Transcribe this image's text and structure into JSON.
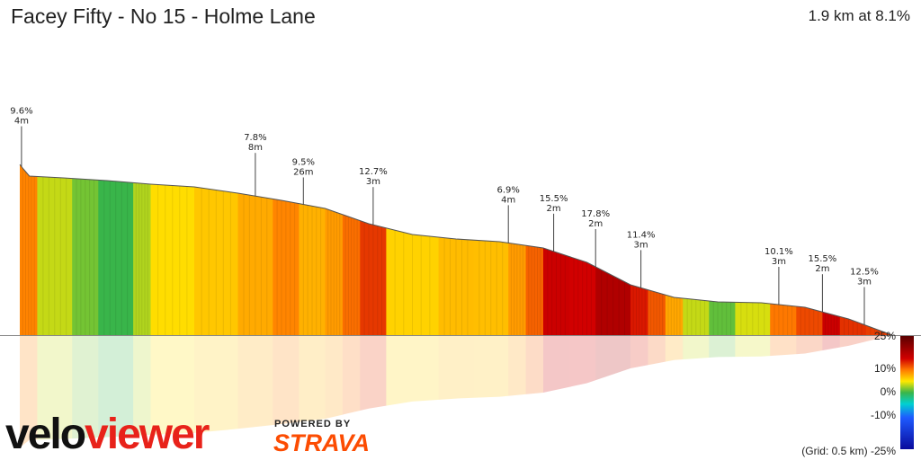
{
  "header": {
    "title": "Facey Fifty - No 15 - Holme Lane",
    "summary": "1.9 km at 8.1%"
  },
  "branding": {
    "logo_text": "veloviewer",
    "powered_by": "POWERED BY",
    "partner": "STRAVA"
  },
  "footer": {
    "grid_note": "(Grid: 0.5 km)"
  },
  "colors": {
    "accent": "#fc4c02",
    "logo_black": "#111111",
    "logo_red": "#e8221a"
  },
  "chart_data": {
    "type": "area",
    "distance_km": 1.9,
    "avg_gradient_pct": 8.1,
    "profile": [
      {
        "d": 0.0,
        "h": 190
      },
      {
        "d": 0.004,
        "h": 185
      },
      {
        "d": 0.011,
        "h": 177
      },
      {
        "d": 0.05,
        "h": 175
      },
      {
        "d": 0.1,
        "h": 172
      },
      {
        "d": 0.15,
        "h": 168
      },
      {
        "d": 0.2,
        "h": 165
      },
      {
        "d": 0.25,
        "h": 158
      },
      {
        "d": 0.3,
        "h": 150
      },
      {
        "d": 0.35,
        "h": 141
      },
      {
        "d": 0.4,
        "h": 124
      },
      {
        "d": 0.45,
        "h": 112
      },
      {
        "d": 0.5,
        "h": 107
      },
      {
        "d": 0.55,
        "h": 104
      },
      {
        "d": 0.6,
        "h": 97
      },
      {
        "d": 0.65,
        "h": 81
      },
      {
        "d": 0.7,
        "h": 56
      },
      {
        "d": 0.75,
        "h": 42
      },
      {
        "d": 0.8,
        "h": 37
      },
      {
        "d": 0.85,
        "h": 36
      },
      {
        "d": 0.9,
        "h": 31
      },
      {
        "d": 0.95,
        "h": 18
      },
      {
        "d": 1.0,
        "h": 0
      }
    ],
    "gradient_segments": [
      {
        "from": 0.0,
        "to": 0.02,
        "grad": 9.6
      },
      {
        "from": 0.02,
        "to": 0.06,
        "grad": 3.5
      },
      {
        "from": 0.06,
        "to": 0.09,
        "grad": 1.5
      },
      {
        "from": 0.09,
        "to": 0.13,
        "grad": 0.0
      },
      {
        "from": 0.13,
        "to": 0.15,
        "grad": 3.0
      },
      {
        "from": 0.15,
        "to": 0.2,
        "grad": 5.5
      },
      {
        "from": 0.2,
        "to": 0.25,
        "grad": 6.5
      },
      {
        "from": 0.25,
        "to": 0.29,
        "grad": 7.8
      },
      {
        "from": 0.29,
        "to": 0.32,
        "grad": 9.5
      },
      {
        "from": 0.32,
        "to": 0.35,
        "grad": 7.5
      },
      {
        "from": 0.35,
        "to": 0.37,
        "grad": 8.5
      },
      {
        "from": 0.37,
        "to": 0.39,
        "grad": 10.5
      },
      {
        "from": 0.39,
        "to": 0.42,
        "grad": 12.7
      },
      {
        "from": 0.42,
        "to": 0.48,
        "grad": 6.0
      },
      {
        "from": 0.48,
        "to": 0.52,
        "grad": 7.0
      },
      {
        "from": 0.52,
        "to": 0.56,
        "grad": 6.9
      },
      {
        "from": 0.56,
        "to": 0.58,
        "grad": 8.5
      },
      {
        "from": 0.58,
        "to": 0.6,
        "grad": 11.0
      },
      {
        "from": 0.6,
        "to": 0.63,
        "grad": 15.5
      },
      {
        "from": 0.63,
        "to": 0.66,
        "grad": 15.0
      },
      {
        "from": 0.66,
        "to": 0.7,
        "grad": 17.8
      },
      {
        "from": 0.7,
        "to": 0.72,
        "grad": 14.0
      },
      {
        "from": 0.72,
        "to": 0.74,
        "grad": 11.4
      },
      {
        "from": 0.74,
        "to": 0.76,
        "grad": 8.0
      },
      {
        "from": 0.76,
        "to": 0.79,
        "grad": 3.5
      },
      {
        "from": 0.79,
        "to": 0.82,
        "grad": 1.0
      },
      {
        "from": 0.82,
        "to": 0.86,
        "grad": 4.0
      },
      {
        "from": 0.86,
        "to": 0.89,
        "grad": 10.1
      },
      {
        "from": 0.89,
        "to": 0.92,
        "grad": 12.0
      },
      {
        "from": 0.92,
        "to": 0.94,
        "grad": 15.5
      },
      {
        "from": 0.94,
        "to": 0.97,
        "grad": 13.0
      },
      {
        "from": 0.97,
        "to": 1.0,
        "grad": 12.5
      }
    ],
    "annotations": [
      {
        "d": 0.002,
        "h": 190,
        "grade": "9.6%",
        "length": "4m",
        "drop": 45
      },
      {
        "d": 0.27,
        "h": 154,
        "grade": "7.8%",
        "length": "8m",
        "drop": 48
      },
      {
        "d": 0.325,
        "h": 146,
        "grade": "9.5%",
        "length": "26m",
        "drop": 30
      },
      {
        "d": 0.405,
        "h": 120,
        "grade": "12.7%",
        "length": "3m",
        "drop": 42
      },
      {
        "d": 0.56,
        "h": 102,
        "grade": "6.9%",
        "length": "4m",
        "drop": 42
      },
      {
        "d": 0.612,
        "h": 90,
        "grade": "15.5%",
        "length": "2m",
        "drop": 42
      },
      {
        "d": 0.66,
        "h": 68,
        "grade": "17.8%",
        "length": "2m",
        "drop": 42
      },
      {
        "d": 0.712,
        "h": 48,
        "grade": "11.4%",
        "length": "3m",
        "drop": 42
      },
      {
        "d": 0.87,
        "h": 34,
        "grade": "10.1%",
        "length": "3m",
        "drop": 42
      },
      {
        "d": 0.92,
        "h": 20,
        "grade": "15.5%",
        "length": "2m",
        "drop": 42
      },
      {
        "d": 0.968,
        "h": 6,
        "grade": "12.5%",
        "length": "3m",
        "drop": 42
      }
    ],
    "color_scale": {
      "ticks": [
        "25%",
        "10%",
        "0%",
        "-10%",
        "-25%"
      ],
      "values": [
        25,
        10,
        0,
        -10,
        -25
      ]
    }
  }
}
